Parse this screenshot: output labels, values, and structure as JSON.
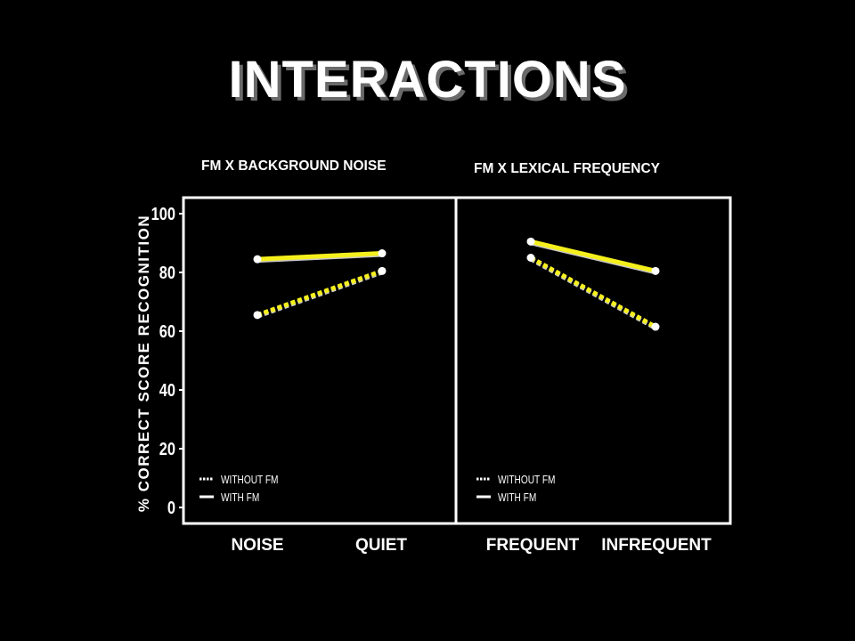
{
  "slide": {
    "title": "INTERACTIONS"
  },
  "colors": {
    "background": "#000000",
    "frame": "#ffffff",
    "series": "#f5f01c",
    "markers": "#ffffff"
  },
  "chart_data": [
    {
      "type": "line",
      "title": "FM X BACKGROUND NOISE",
      "ylabel": "% CORRECT SCORE RECOGNITION",
      "xlabel": "",
      "categories": [
        "NOISE",
        "QUIET"
      ],
      "ylim": [
        0,
        100
      ],
      "yticks": [
        0,
        20,
        40,
        60,
        80,
        100
      ],
      "grid": false,
      "legend_position": "bottom-left",
      "series": [
        {
          "name": "WITHOUT FM",
          "style": "dashed",
          "values": [
            65.5,
            80.5
          ]
        },
        {
          "name": "WITH FM",
          "style": "solid",
          "values": [
            84.5,
            86.5
          ]
        }
      ]
    },
    {
      "type": "line",
      "title": "FM X LEXICAL FREQUENCY",
      "ylabel": "",
      "xlabel": "",
      "categories": [
        "FREQUENT",
        "INFREQUENT"
      ],
      "ylim": [
        0,
        100
      ],
      "grid": false,
      "legend_position": "bottom-left",
      "series": [
        {
          "name": "WITHOUT FM",
          "style": "dashed",
          "values": [
            85,
            61.5
          ]
        },
        {
          "name": "WITH FM",
          "style": "solid",
          "values": [
            90.5,
            80.5
          ]
        }
      ]
    }
  ]
}
